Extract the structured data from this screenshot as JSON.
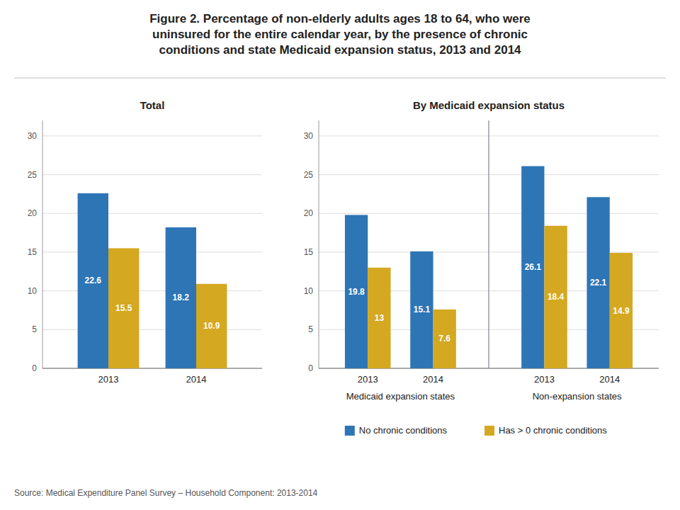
{
  "chart_data": [
    {
      "type": "bar",
      "title": "Figure 2. Percentage of non-elderly adults ages 18 to 64, who were\nuninsured for the entire calendar year, by the presence of chronic\nconditions and state Medicaid expansion status, 2013 and 2014",
      "subtitle": "Total",
      "categories": [
        "2013",
        "2014"
      ],
      "series": [
        {
          "color": "#2E75B6",
          "values": [
            22.6,
            18.2
          ]
        },
        {
          "color": "#D4A820",
          "values": [
            15.5,
            10.9
          ]
        }
      ],
      "ylim": [
        0,
        32
      ],
      "yticks": [
        0,
        5,
        10,
        15,
        20,
        25,
        30
      ],
      "grid": true,
      "data_labels": true,
      "annotations": [
        {
          "text": "Source: Medical Expenditure Panel Survey – Household Component: 2013-2014"
        }
      ]
    },
    {
      "type": "bar",
      "subtitle": "By Medicaid expansion status",
      "categories": [
        "2013",
        "2014",
        "2013",
        "2014"
      ],
      "series": [
        {
          "name": "No chronic conditions",
          "color": "#2E75B6",
          "values": [
            19.8,
            15.1,
            26.1,
            22.1
          ]
        },
        {
          "name": "Has > 0 chronic conditions",
          "color": "#D4A820",
          "values": [
            13.0,
            7.6,
            18.4,
            14.9
          ]
        }
      ],
      "ylim": [
        0,
        32
      ],
      "yticks": [
        0,
        5,
        10,
        15,
        20,
        25,
        30
      ],
      "grid": true,
      "data_labels": true,
      "legend": "bottom",
      "annotations": [
        {
          "text": "Medicaid expansion states"
        },
        {
          "text": "Non-expansion states"
        }
      ]
    }
  ]
}
